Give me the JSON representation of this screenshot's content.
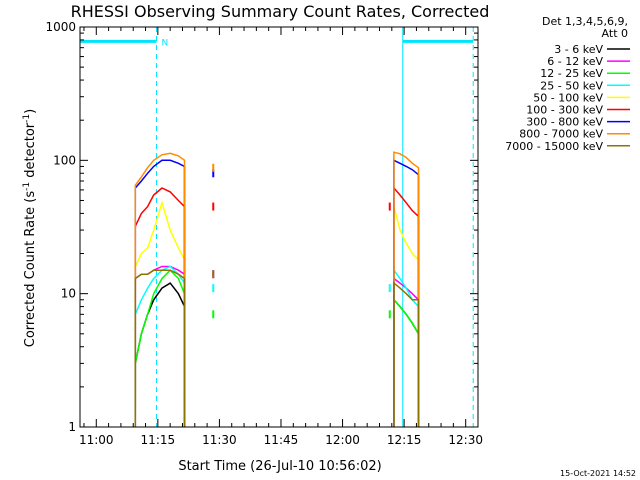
{
  "chart_data": {
    "type": "line",
    "title": "RHESSI Observing Summary Count Rates, Corrected",
    "xlabel": "Start Time (26-Jul-10 10:56:02)",
    "ylabel_main": "Corrected Count Rate (s",
    "ylabel_sup1": "-1",
    "ylabel_mid": " detector",
    "ylabel_sup2": "-1",
    "ylabel_end": ")",
    "yscale": "log",
    "ylim": [
      1,
      1000
    ],
    "xlim": [
      "10:56:02",
      "12:33:00"
    ],
    "x_ticks": [
      "11:00",
      "11:15",
      "11:30",
      "11:45",
      "12:00",
      "12:15",
      "12:30"
    ],
    "y_ticks": [
      "1",
      "10",
      "100",
      "1000"
    ],
    "legend_title": [
      "Det 1,3,4,5,6,9,",
      "Att 0"
    ],
    "legend_position": "right",
    "footer": "15-Oct-2021 14:52",
    "annotations": [
      {
        "text": "N",
        "x": "11:14:40"
      }
    ],
    "flag_bars": [
      {
        "from": "10:56:02",
        "to": "11:14:40",
        "level": 780,
        "color": "#00e5ff"
      },
      {
        "from": "12:14:40",
        "to": "12:31:50",
        "level": 780,
        "color": "#00e5ff"
      }
    ],
    "solid_lines_x": [
      "10:56:02",
      "12:14:40"
    ],
    "dashed_lines_x": [
      "11:14:40",
      "12:31:50"
    ],
    "series": [
      {
        "name": "3 - 6 keV",
        "color": "#000000",
        "s1": [
          3,
          5,
          7,
          9,
          11,
          12,
          10,
          8
        ],
        "s2": [
          9,
          8,
          7,
          6,
          5
        ]
      },
      {
        "name": "6 - 12 keV",
        "color": "#ff00ff",
        "s1": [
          13,
          14,
          14,
          15,
          16,
          16,
          15,
          14
        ],
        "s2": [
          13,
          12,
          11,
          10,
          9
        ]
      },
      {
        "name": "12 - 25 keV",
        "color": "#00ff00",
        "s1": [
          3,
          5,
          7,
          10,
          13,
          15,
          13,
          10
        ],
        "s2": [
          9,
          8,
          7,
          6,
          5
        ]
      },
      {
        "name": "25 - 50 keV",
        "color": "#00ffff",
        "s1": [
          7,
          9,
          11,
          13,
          15,
          16,
          14,
          12
        ],
        "s2": [
          15,
          13,
          11,
          9,
          8
        ]
      },
      {
        "name": "50 - 100 keV",
        "color": "#ffff00",
        "s1": [
          16,
          20,
          22,
          30,
          48,
          30,
          22,
          18
        ],
        "s2": [
          45,
          30,
          24,
          20,
          18
        ]
      },
      {
        "name": "100 - 300 keV",
        "color": "#ff0000",
        "s1": [
          32,
          40,
          45,
          55,
          62,
          58,
          50,
          45
        ],
        "s2": [
          62,
          55,
          48,
          42,
          38
        ]
      },
      {
        "name": "300 - 800 keV",
        "color": "#0000ff",
        "s1": [
          62,
          70,
          80,
          90,
          100,
          100,
          95,
          90
        ],
        "s2": [
          100,
          95,
          90,
          85,
          78
        ]
      },
      {
        "name": "800 - 7000 keV",
        "color": "#ff8c00",
        "s1": [
          65,
          75,
          88,
          100,
          110,
          113,
          108,
          100
        ],
        "s2": [
          115,
          112,
          105,
          95,
          88
        ]
      },
      {
        "name": "7000 - 15000 keV",
        "color": "#8b7500",
        "s1": [
          13,
          14,
          14,
          15,
          15,
          15,
          14,
          13
        ],
        "s2": [
          12,
          11,
          10,
          9,
          9
        ]
      }
    ],
    "x_segment1": [
      "11:09:30",
      "11:11:00",
      "11:12:30",
      "11:14:00",
      "11:16:00",
      "11:18:00",
      "11:20:00",
      "11:21:30"
    ],
    "x_segment2": [
      "12:12:30",
      "12:14:00",
      "12:15:30",
      "12:17:00",
      "12:18:30"
    ],
    "scatter": [
      {
        "x": "11:28:30",
        "series": [
          1,
          2,
          3,
          5,
          6,
          7,
          8
        ]
      },
      {
        "x": "12:11:30",
        "series": [
          2,
          3,
          5
        ]
      }
    ]
  }
}
